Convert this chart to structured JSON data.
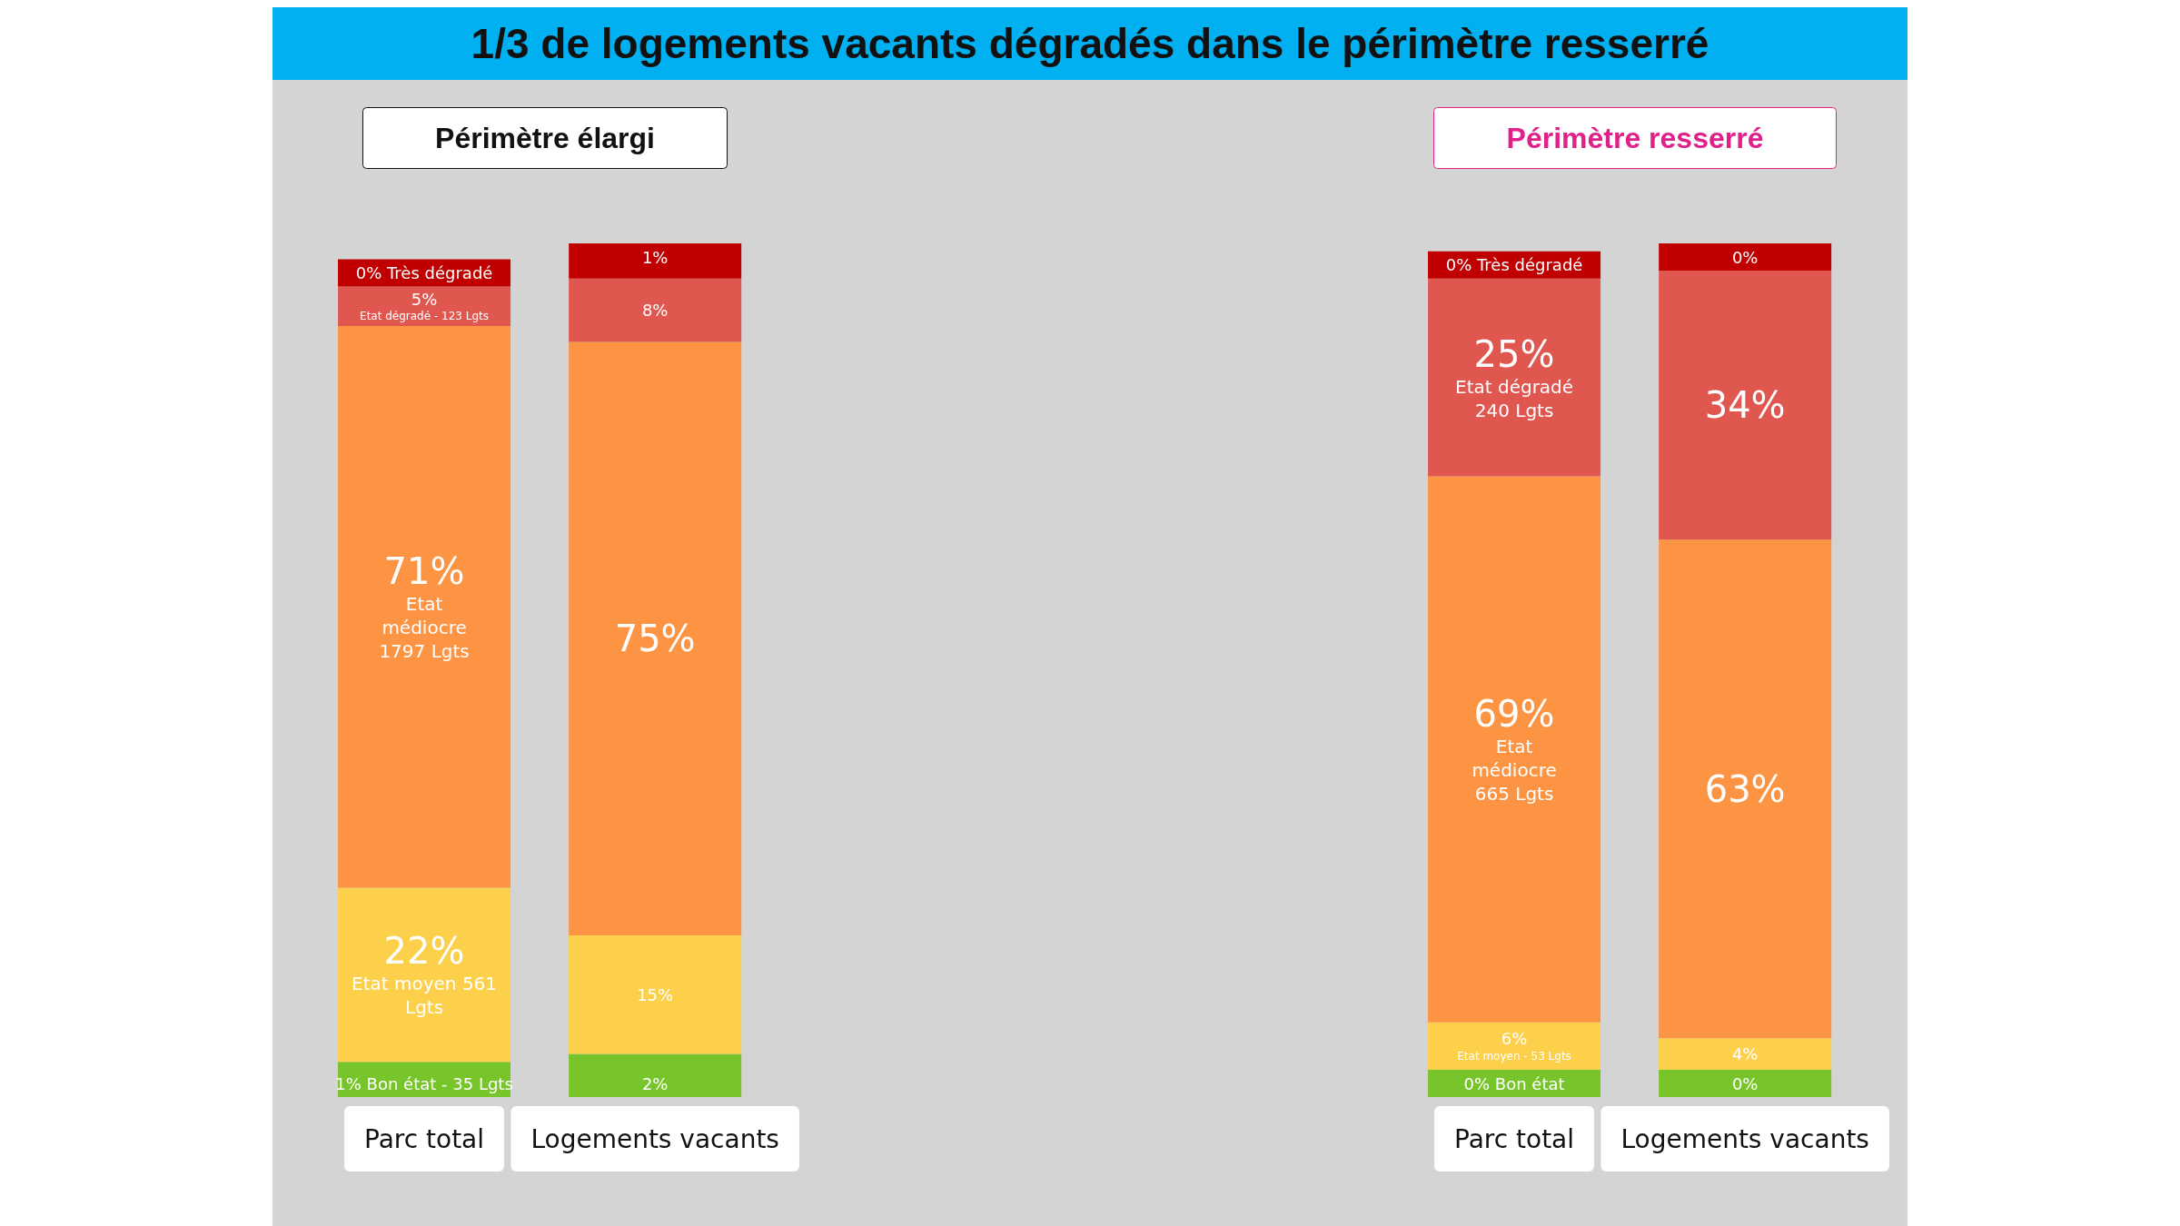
{
  "chart_data": [
    {
      "type": "bar",
      "title": "Périmètre élargi",
      "annotations": [
        "1/3 de logements vacants dégradés dans le périmètre resserré"
      ],
      "categories": [
        "Parc total",
        "Logements vacants"
      ],
      "stacked": true,
      "series": [
        {
          "color": "#77c52a",
          "values": [
            1,
            2
          ],
          "value_labels": [
            "1% Bon état - 35 Lgts",
            "2%"
          ]
        },
        {
          "color": "#fcd04a",
          "values": [
            22,
            15
          ],
          "value_labels": [
            "22%\nEtat moyen 561\nLgts",
            "15%"
          ]
        },
        {
          "color": "#fd9444",
          "values": [
            71,
            75
          ],
          "value_labels": [
            "71%\nEtat\nmédiocre\n1797 Lgts",
            "75%"
          ]
        },
        {
          "color": "#e05750",
          "values": [
            5,
            8
          ],
          "value_labels": [
            "5%\nEtat dégradé - 123 Lgts",
            "8%"
          ]
        },
        {
          "color": "#c00000",
          "values": [
            0,
            1
          ],
          "value_labels": [
            "0% Très dégradé",
            "1%"
          ]
        }
      ]
    },
    {
      "type": "bar",
      "title": "Périmètre resserré",
      "categories": [
        "Parc total",
        "Logements vacants"
      ],
      "stacked": true,
      "series": [
        {
          "color": "#77c52a",
          "values": [
            0,
            0
          ],
          "value_labels": [
            "0% Bon état",
            "0%"
          ]
        },
        {
          "color": "#fcd04a",
          "values": [
            6,
            4
          ],
          "value_labels": [
            "6%\nEtat moyen - 53 Lgts",
            "4%"
          ]
        },
        {
          "color": "#fd9444",
          "values": [
            69,
            63
          ],
          "value_labels": [
            "69%\nEtat\nmédiocre\n665 Lgts",
            "63%"
          ]
        },
        {
          "color": "#e05750",
          "values": [
            25,
            34
          ],
          "value_labels": [
            "25%\nEtat dégradé\n240 Lgts",
            "34%"
          ]
        },
        {
          "color": "#c00000",
          "values": [
            0,
            0
          ],
          "value_labels": [
            "0% Très dégradé",
            "0%"
          ]
        }
      ]
    }
  ]
}
